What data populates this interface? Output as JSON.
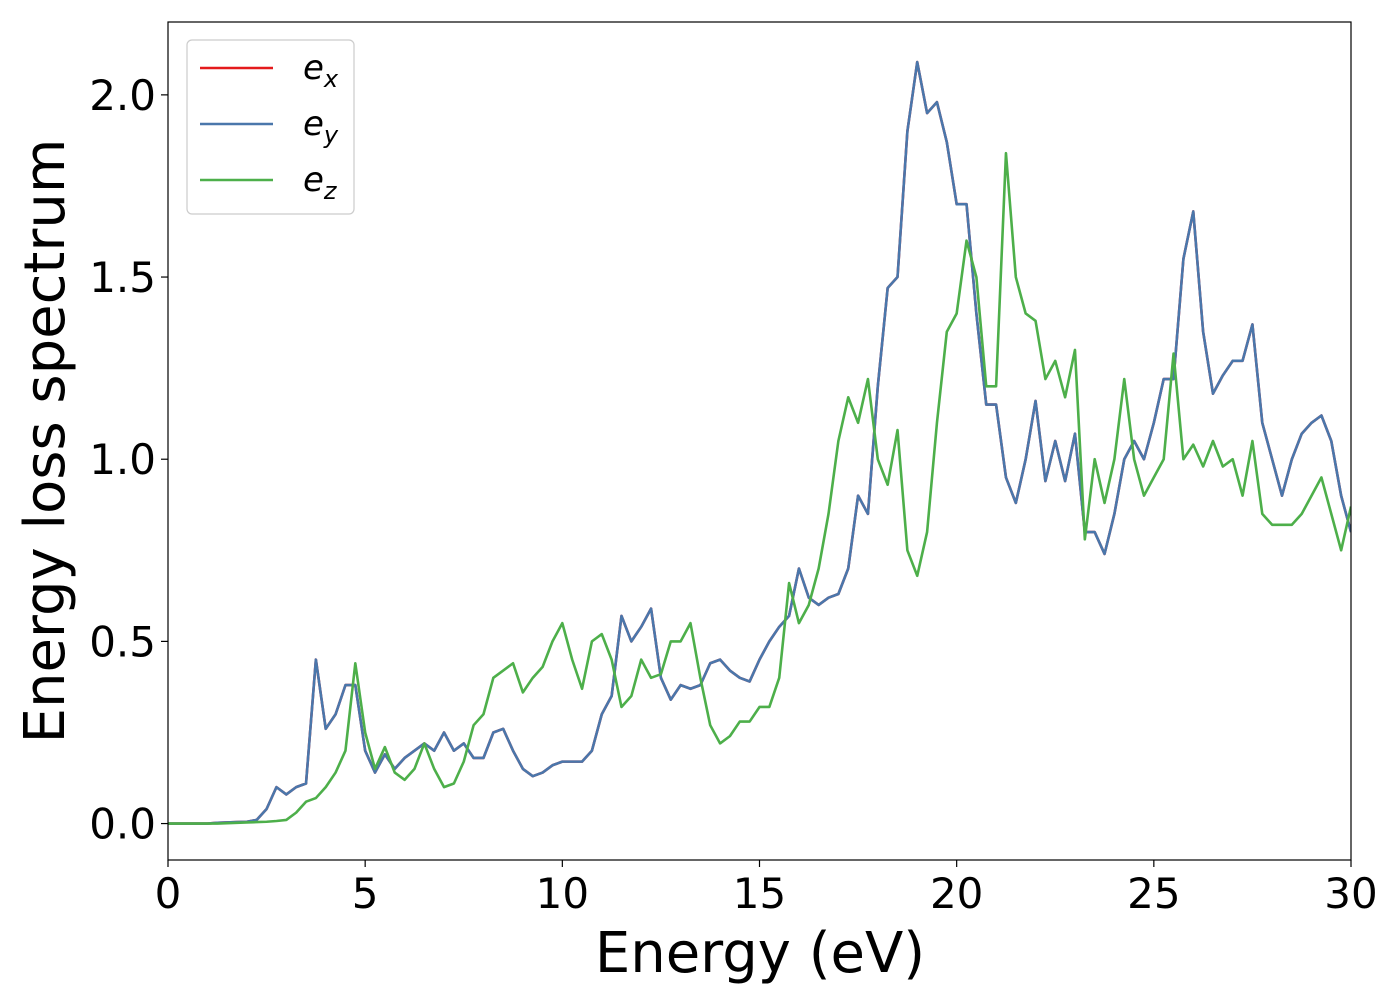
{
  "chart_data": {
    "type": "line",
    "xlabel": "Energy (eV)",
    "ylabel": "Energy loss spectrum",
    "xlim": [
      0,
      30
    ],
    "ylim": [
      -0.1,
      2.2
    ],
    "xticks": [
      0,
      5,
      10,
      15,
      20,
      25,
      30
    ],
    "yticks": [
      {
        "value": 0,
        "label": "0.0"
      },
      {
        "value": 0.5,
        "label": "0.5"
      },
      {
        "value": 1,
        "label": "1.0"
      },
      {
        "value": 1.5,
        "label": "1.5"
      },
      {
        "value": 2,
        "label": "2.0"
      }
    ],
    "grid": false,
    "legend": "upper left",
    "x": [
      0,
      0.25,
      0.5,
      0.75,
      1,
      1.25,
      1.5,
      1.75,
      2,
      2.25,
      2.5,
      2.75,
      3,
      3.25,
      3.5,
      3.75,
      4,
      4.25,
      4.5,
      4.75,
      5,
      5.25,
      5.5,
      5.75,
      6,
      6.25,
      6.5,
      6.75,
      7,
      7.25,
      7.5,
      7.75,
      8,
      8.25,
      8.5,
      8.75,
      9,
      9.25,
      9.5,
      9.75,
      10,
      10.25,
      10.5,
      10.75,
      11,
      11.25,
      11.5,
      11.75,
      12,
      12.25,
      12.5,
      12.75,
      13,
      13.25,
      13.5,
      13.75,
      14,
      14.25,
      14.5,
      14.75,
      15,
      15.25,
      15.5,
      15.75,
      16,
      16.25,
      16.5,
      16.75,
      17,
      17.25,
      17.5,
      17.75,
      18,
      18.25,
      18.5,
      18.75,
      19,
      19.25,
      19.5,
      19.75,
      20,
      20.25,
      20.5,
      20.75,
      21,
      21.25,
      21.5,
      21.75,
      22,
      22.25,
      22.5,
      22.75,
      23,
      23.25,
      23.5,
      23.75,
      24,
      24.25,
      24.5,
      24.75,
      25,
      25.25,
      25.5,
      25.75,
      26,
      26.25,
      26.5,
      26.75,
      27,
      27.25,
      27.5,
      27.75,
      28,
      28.25,
      28.5,
      28.75,
      29,
      29.25,
      29.5,
      29.75,
      30
    ],
    "series": [
      {
        "name": "ex",
        "color": "#e41a1c",
        "values": [
          0,
          0,
          0,
          0,
          0,
          0.002,
          0.003,
          0.004,
          0.005,
          0.01,
          0.04,
          0.1,
          0.08,
          0.1,
          0.11,
          0.45,
          0.26,
          0.3,
          0.38,
          0.38,
          0.2,
          0.14,
          0.19,
          0.15,
          0.18,
          0.2,
          0.22,
          0.2,
          0.25,
          0.2,
          0.22,
          0.18,
          0.18,
          0.25,
          0.26,
          0.2,
          0.15,
          0.13,
          0.14,
          0.16,
          0.17,
          0.17,
          0.17,
          0.2,
          0.3,
          0.35,
          0.57,
          0.5,
          0.54,
          0.59,
          0.4,
          0.34,
          0.38,
          0.37,
          0.38,
          0.44,
          0.45,
          0.42,
          0.4,
          0.39,
          0.45,
          0.5,
          0.54,
          0.57,
          0.7,
          0.62,
          0.6,
          0.62,
          0.63,
          0.7,
          0.9,
          0.85,
          1.2,
          1.47,
          1.5,
          1.9,
          2.09,
          1.95,
          1.98,
          1.87,
          1.7,
          1.7,
          1.4,
          1.15,
          1.15,
          0.95,
          0.88,
          1.0,
          1.16,
          0.94,
          1.05,
          0.94,
          1.07,
          0.8,
          0.8,
          0.74,
          0.85,
          1.0,
          1.05,
          1.0,
          1.1,
          1.22,
          1.22,
          1.55,
          1.68,
          1.35,
          1.18,
          1.23,
          1.27,
          1.27,
          1.37,
          1.1,
          1.0,
          0.9,
          1.0,
          1.07,
          1.1,
          1.12,
          1.05,
          0.9,
          0.8
        ]
      },
      {
        "name": "ey",
        "color": "#4a77ab",
        "values": [
          0,
          0,
          0,
          0,
          0,
          0.002,
          0.003,
          0.004,
          0.005,
          0.01,
          0.04,
          0.1,
          0.08,
          0.1,
          0.11,
          0.45,
          0.26,
          0.3,
          0.38,
          0.38,
          0.2,
          0.14,
          0.19,
          0.15,
          0.18,
          0.2,
          0.22,
          0.2,
          0.25,
          0.2,
          0.22,
          0.18,
          0.18,
          0.25,
          0.26,
          0.2,
          0.15,
          0.13,
          0.14,
          0.16,
          0.17,
          0.17,
          0.17,
          0.2,
          0.3,
          0.35,
          0.57,
          0.5,
          0.54,
          0.59,
          0.4,
          0.34,
          0.38,
          0.37,
          0.38,
          0.44,
          0.45,
          0.42,
          0.4,
          0.39,
          0.45,
          0.5,
          0.54,
          0.57,
          0.7,
          0.62,
          0.6,
          0.62,
          0.63,
          0.7,
          0.9,
          0.85,
          1.2,
          1.47,
          1.5,
          1.9,
          2.09,
          1.95,
          1.98,
          1.87,
          1.7,
          1.7,
          1.4,
          1.15,
          1.15,
          0.95,
          0.88,
          1.0,
          1.16,
          0.94,
          1.05,
          0.94,
          1.07,
          0.8,
          0.8,
          0.74,
          0.85,
          1.0,
          1.05,
          1.0,
          1.1,
          1.22,
          1.22,
          1.55,
          1.68,
          1.35,
          1.18,
          1.23,
          1.27,
          1.27,
          1.37,
          1.1,
          1.0,
          0.9,
          1.0,
          1.07,
          1.1,
          1.12,
          1.05,
          0.9,
          0.8
        ]
      },
      {
        "name": "ez",
        "color": "#4daf4a",
        "values": [
          0,
          0,
          0,
          0,
          0,
          0,
          0.001,
          0.002,
          0.003,
          0.004,
          0.005,
          0.007,
          0.01,
          0.03,
          0.06,
          0.07,
          0.1,
          0.14,
          0.2,
          0.44,
          0.25,
          0.15,
          0.21,
          0.14,
          0.12,
          0.15,
          0.22,
          0.15,
          0.1,
          0.11,
          0.17,
          0.27,
          0.3,
          0.4,
          0.42,
          0.44,
          0.36,
          0.4,
          0.43,
          0.5,
          0.55,
          0.45,
          0.37,
          0.5,
          0.52,
          0.45,
          0.32,
          0.35,
          0.45,
          0.4,
          0.41,
          0.5,
          0.5,
          0.55,
          0.4,
          0.27,
          0.22,
          0.24,
          0.28,
          0.28,
          0.32,
          0.32,
          0.4,
          0.66,
          0.55,
          0.6,
          0.7,
          0.85,
          1.05,
          1.17,
          1.1,
          1.22,
          1.0,
          0.93,
          1.08,
          0.75,
          0.68,
          0.8,
          1.1,
          1.35,
          1.4,
          1.6,
          1.5,
          1.2,
          1.2,
          1.84,
          1.5,
          1.4,
          1.38,
          1.22,
          1.27,
          1.17,
          1.3,
          0.78,
          1.0,
          0.88,
          1.0,
          1.22,
          1.0,
          0.9,
          0.95,
          1.0,
          1.29,
          1.0,
          1.04,
          0.98,
          1.05,
          0.98,
          1.0,
          0.9,
          1.05,
          0.85,
          0.82,
          0.82,
          0.82,
          0.85,
          0.9,
          0.95,
          0.85,
          0.75,
          0.87
        ]
      }
    ]
  }
}
